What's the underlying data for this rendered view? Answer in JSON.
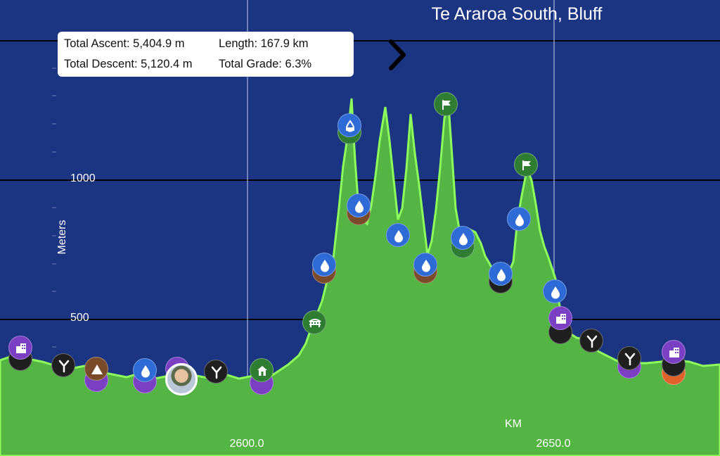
{
  "title": "Te Araroa South, Bluff",
  "stats": {
    "ascent": "Total Ascent: 5,404.9 m",
    "descent": "Total Descent: 5,120.4 m",
    "length": "Length: 167.9 km",
    "grade": "Total Grade: 6.3%"
  },
  "axes": {
    "y_label": "Meters",
    "x_label": "KM",
    "y_ticks": [
      "1000",
      "500"
    ],
    "x_ticks": [
      "2600.0",
      "2650.0"
    ]
  },
  "colors": {
    "sky": "#1b3583",
    "terrain_fill": "#54b545",
    "terrain_line": "#8dff5a",
    "water": "#2f6bd6",
    "peak": "#2e7d32",
    "town": "#7b3fc4",
    "junction": "#1f1f1f"
  },
  "icons": {
    "next": "chevron-right-icon",
    "poi_types": [
      "town-icon",
      "junction-icon",
      "camp-icon",
      "water-icon",
      "hut-icon",
      "bridge-icon",
      "peak-flag-icon"
    ]
  }
}
